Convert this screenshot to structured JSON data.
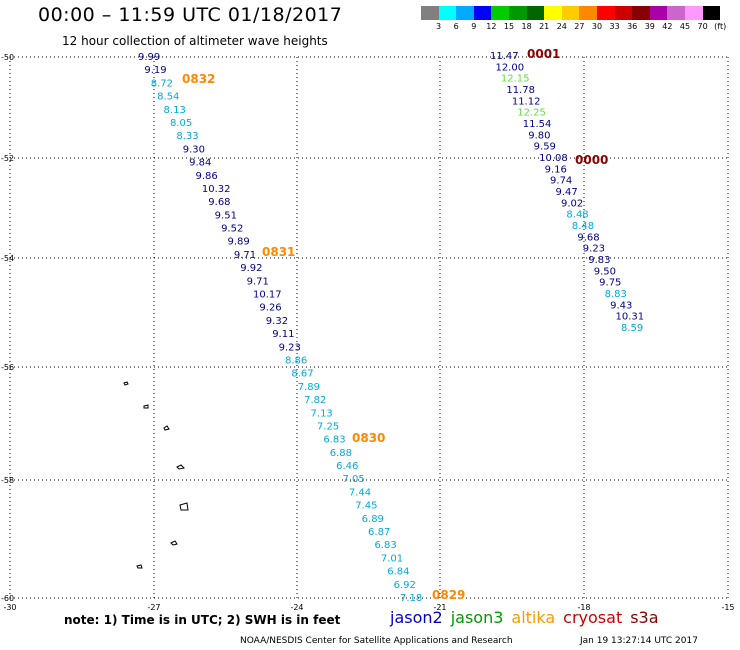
{
  "header": {
    "title": "00:00 – 11:59 UTC 01/18/2017",
    "subtitle": "12 hour collection of altimeter wave heights"
  },
  "colorbar": {
    "colors": [
      "#808080",
      "#00ffff",
      "#00aaff",
      "#0000ff",
      "#00cc00",
      "#009900",
      "#006600",
      "#ffff00",
      "#ffcc00",
      "#ff8800",
      "#ff0000",
      "#cc0000",
      "#880000",
      "#aa00aa",
      "#cc66cc",
      "#ff99ff",
      "#000000"
    ],
    "labels": [
      "3",
      "6",
      "9",
      "12",
      "15",
      "18",
      "21",
      "24",
      "27",
      "30",
      "33",
      "36",
      "39",
      "42",
      "45",
      "70",
      "(ft)"
    ]
  },
  "axes": {
    "lat_labels": [
      "-50",
      "-52",
      "-54",
      "-56",
      "-58",
      "-60"
    ],
    "lon_labels": [
      "-30",
      "-27",
      "-24",
      "-21",
      "-18",
      "-15"
    ]
  },
  "tracks": {
    "west": {
      "values": [
        "9.99",
        "9.19",
        "8.72",
        "8.54",
        "8.13",
        "8.05",
        "8.33",
        "9.30",
        "9.84",
        "9.86",
        "10.32",
        "9.68",
        "9.51",
        "9.52",
        "9.89",
        "9.71",
        "9.92",
        "9.71",
        "10.17",
        "9.26",
        "9.32",
        "9.11",
        "9.23",
        "8.86",
        "8.67",
        "7.89",
        "7.82",
        "7.13",
        "7.25",
        "6.83",
        "6.88",
        "6.46",
        "7.05",
        "7.44",
        "7.45",
        "6.89",
        "6.87",
        "6.83",
        "7.01",
        "6.84",
        "6.92",
        "7.18"
      ],
      "colors": [
        "#00008b",
        "#00008b",
        "#00aadd",
        "#00aadd",
        "#00aadd",
        "#00aadd",
        "#00aadd",
        "#00008b",
        "#00008b",
        "#00008b",
        "#00008b",
        "#00008b",
        "#00008b",
        "#00008b",
        "#00008b",
        "#00008b",
        "#00008b",
        "#00008b",
        "#00008b",
        "#00008b",
        "#00008b",
        "#00008b",
        "#00008b",
        "#00aadd",
        "#00aadd",
        "#00aadd",
        "#00aadd",
        "#00aadd",
        "#00aadd",
        "#00aadd",
        "#00aadd",
        "#00aadd",
        "#00aadd",
        "#00aadd",
        "#00aadd",
        "#00aadd",
        "#00aadd",
        "#00aadd",
        "#00aadd",
        "#00aadd",
        "#00aadd",
        "#00aadd"
      ]
    },
    "east": {
      "values": [
        "11.47",
        "12.00",
        "12.15",
        "11.78",
        "11.12",
        "12.25",
        "11.54",
        "9.80",
        "9.59",
        "10.08",
        "9.16",
        "9.74",
        "9.47",
        "9.02",
        "8.48",
        "8.48",
        "9.68",
        "9.23",
        "9.83",
        "9.50",
        "9.75",
        "8.83",
        "9.43",
        "10.31",
        "8.59"
      ],
      "colors": [
        "#00008b",
        "#00008b",
        "#66dd44",
        "#00008b",
        "#00008b",
        "#66dd44",
        "#00008b",
        "#00008b",
        "#00008b",
        "#00008b",
        "#00008b",
        "#00008b",
        "#00008b",
        "#00008b",
        "#00aadd",
        "#00aadd",
        "#00008b",
        "#00008b",
        "#00008b",
        "#00008b",
        "#00008b",
        "#00aadd",
        "#00008b",
        "#00008b",
        "#00aadd"
      ]
    }
  },
  "time_labels": [
    {
      "text": "0832",
      "color": "#ff8800"
    },
    {
      "text": "0831",
      "color": "#ff8800"
    },
    {
      "text": "0830",
      "color": "#ff8800"
    },
    {
      "text": "0829",
      "color": "#ff8800"
    },
    {
      "text": "0001",
      "color": "#8b0000"
    },
    {
      "text": "0000",
      "color": "#8b0000"
    }
  ],
  "footer": {
    "note": "note:  1) Time is in UTC;  2) SWH is in feet",
    "satellites": [
      {
        "name": "jason2",
        "color": "#0000cc"
      },
      {
        "name": "jason3",
        "color": "#009900"
      },
      {
        "name": "altika",
        "color": "#ff9900"
      },
      {
        "name": "cryosat",
        "color": "#cc0000"
      },
      {
        "name": "s3a",
        "color": "#8b0000"
      }
    ],
    "credit": "NOAA/NESDIS Center for Satellite Applications and Research",
    "timestamp": "Jan 19 13:27:14 UTC 2017"
  }
}
